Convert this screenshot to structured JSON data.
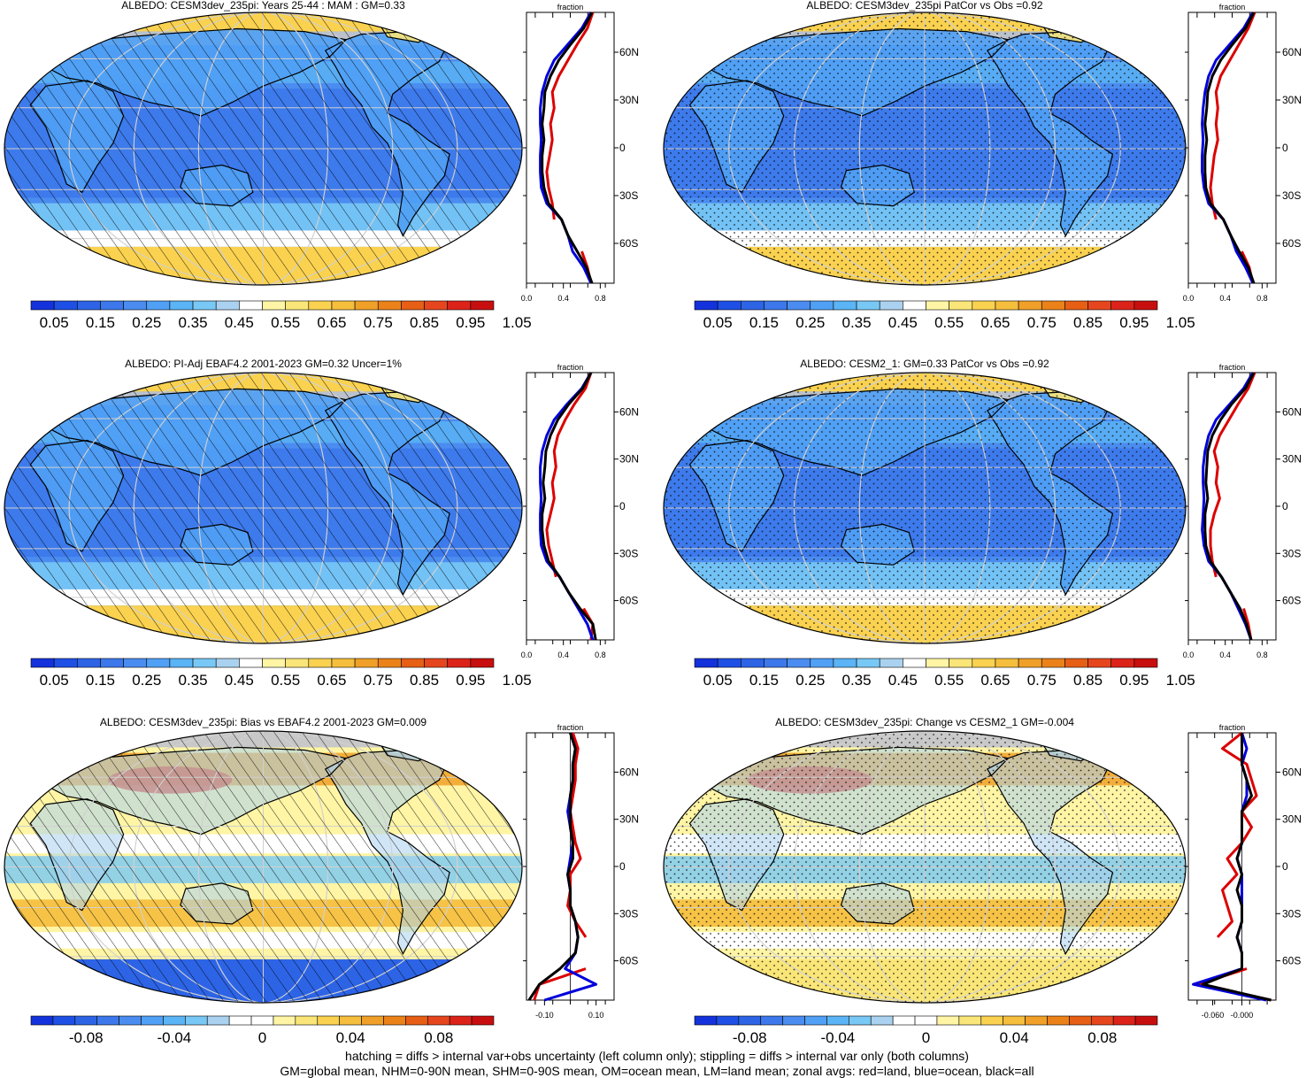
{
  "colors": {
    "abs_scale": [
      "#1432dc",
      "#1e50e6",
      "#2d64e6",
      "#3c78eb",
      "#4b8cf0",
      "#50a0f5",
      "#5ab4f5",
      "#78c8f5",
      "#aad2f0",
      "#ffffff",
      "#fff5a5",
      "#fae678",
      "#fad250",
      "#f5be3c",
      "#f0a028",
      "#eb8219",
      "#e65f14",
      "#e6461e",
      "#dc2319",
      "#c80f0f"
    ],
    "diff_scale": [
      "#1432dc",
      "#1e50e6",
      "#2d64e6",
      "#3c78eb",
      "#4b8cf0",
      "#50a0f5",
      "#5ab4f5",
      "#78c8f5",
      "#aad2f0",
      "#ffffff",
      "#ffffff",
      "#fff5a5",
      "#fae678",
      "#fad250",
      "#f5be3c",
      "#f0a028",
      "#eb8219",
      "#e65f14",
      "#e6461e",
      "#dc2319",
      "#c80f0f"
    ],
    "land": "#dc0000",
    "ocean": "#0000dc",
    "all": "#000000"
  },
  "lat_labels": [
    "60N",
    "30N",
    "0",
    "30S",
    "60S"
  ],
  "abs_colorbar_labels": [
    "0.05",
    "0.15",
    "0.25",
    "0.35",
    "0.45",
    "0.55",
    "0.65",
    "0.75",
    "0.85",
    "0.95",
    "1.05"
  ],
  "diff_colorbar_labels": [
    "-0.08",
    "-0.04",
    "0",
    "0.04",
    "0.08"
  ],
  "zonal_axis_title": "fraction",
  "footer_line1": "hatching = diffs > internal var+obs uncertainty (left column only); stippling = diffs > internal var only (both columns)",
  "footer_line2": "GM=global mean, NHM=0-90N mean, SHM=0-90S mean, OM=ocean mean, LM=land mean; zonal avgs: red=land, blue=ocean, black=all",
  "chart_data": [
    {
      "type": "heatmap",
      "title": "ALBEDO: CESM3dev_235pi: Years 25-44 : MAM : GM=0.33",
      "overlay": "hatching",
      "colorbar": "abs",
      "zonal": {
        "xticks": [
          "0.0",
          "0.4",
          "0.8"
        ],
        "xlim": [
          0,
          0.95
        ],
        "lat": [
          85,
          75,
          65,
          55,
          45,
          35,
          25,
          15,
          5,
          -5,
          -15,
          -25,
          -35,
          -45,
          -55,
          -65,
          -75,
          -85
        ],
        "land": [
          0.72,
          0.66,
          0.55,
          0.45,
          0.35,
          0.28,
          0.3,
          0.26,
          0.28,
          0.25,
          0.22,
          0.24,
          0.28,
          0.3,
          null,
          0.6,
          0.66,
          0.7
        ],
        "ocean": [
          0.7,
          0.6,
          0.45,
          0.3,
          0.22,
          0.17,
          0.15,
          0.15,
          0.16,
          0.15,
          0.15,
          0.16,
          0.22,
          0.38,
          0.45,
          0.5,
          0.62,
          0.7
        ],
        "all": [
          0.71,
          0.62,
          0.48,
          0.35,
          0.26,
          0.2,
          0.19,
          0.17,
          0.19,
          0.17,
          0.17,
          0.19,
          0.24,
          0.38,
          0.45,
          0.55,
          0.65,
          0.71
        ]
      }
    },
    {
      "type": "heatmap",
      "title": "ALBEDO: CESM3dev_235pi PatCor vs Obs =0.92",
      "overlay": "stippling",
      "colorbar": "abs",
      "zonal": {
        "xticks": [
          "0.0",
          "0.4",
          "0.8"
        ],
        "xlim": [
          0,
          0.95
        ],
        "lat": [
          85,
          75,
          65,
          55,
          45,
          35,
          25,
          15,
          5,
          -5,
          -15,
          -25,
          -35,
          -45,
          -55,
          -65,
          -75,
          -85
        ],
        "land": [
          0.72,
          0.65,
          0.55,
          0.45,
          0.35,
          0.3,
          0.32,
          0.3,
          0.32,
          0.28,
          0.26,
          0.24,
          0.26,
          0.3,
          null,
          0.58,
          0.66,
          0.7
        ],
        "ocean": [
          0.7,
          0.6,
          0.45,
          0.3,
          0.22,
          0.18,
          0.16,
          0.15,
          0.16,
          0.15,
          0.15,
          0.17,
          0.22,
          0.38,
          0.46,
          0.52,
          0.62,
          0.7
        ],
        "all": [
          0.71,
          0.62,
          0.48,
          0.35,
          0.26,
          0.21,
          0.2,
          0.18,
          0.2,
          0.18,
          0.18,
          0.19,
          0.24,
          0.38,
          0.46,
          0.55,
          0.65,
          0.71
        ]
      }
    },
    {
      "type": "heatmap",
      "title": "ALBEDO: PI-Adj EBAF4.2 2001-2023 GM=0.32 Uncer=1%",
      "overlay": "hatching",
      "colorbar": "abs",
      "zonal": {
        "xticks": [
          "0.0",
          "0.4",
          "0.8"
        ],
        "xlim": [
          0,
          0.95
        ],
        "lat": [
          85,
          75,
          65,
          55,
          45,
          35,
          25,
          15,
          5,
          -5,
          -15,
          -25,
          -35,
          -45,
          -55,
          -65,
          -75,
          -85
        ],
        "land": [
          0.7,
          0.64,
          0.52,
          0.42,
          0.34,
          0.3,
          0.32,
          0.28,
          0.3,
          0.26,
          0.22,
          0.24,
          0.28,
          0.32,
          null,
          0.62,
          0.72,
          0.7
        ],
        "ocean": [
          0.7,
          0.6,
          0.44,
          0.3,
          0.22,
          0.17,
          0.15,
          0.15,
          0.16,
          0.15,
          0.15,
          0.16,
          0.22,
          0.36,
          0.46,
          0.56,
          0.66,
          0.72
        ],
        "all": [
          0.7,
          0.61,
          0.46,
          0.34,
          0.26,
          0.21,
          0.2,
          0.18,
          0.2,
          0.17,
          0.17,
          0.19,
          0.24,
          0.36,
          0.46,
          0.58,
          0.72,
          0.75
        ]
      }
    },
    {
      "type": "heatmap",
      "title": "ALBEDO: CESM2_1: GM=0.33 PatCor vs Obs =0.92",
      "overlay": "stippling",
      "colorbar": "abs",
      "zonal": {
        "xticks": [
          "0.0",
          "0.4",
          "0.8"
        ],
        "xlim": [
          0,
          0.95
        ],
        "lat": [
          85,
          75,
          65,
          55,
          45,
          35,
          25,
          15,
          5,
          -5,
          -15,
          -25,
          -35,
          -45,
          -55,
          -65,
          -75,
          -85
        ],
        "land": [
          0.72,
          0.65,
          0.54,
          0.44,
          0.34,
          0.28,
          0.32,
          0.3,
          0.34,
          0.28,
          0.24,
          0.24,
          0.26,
          0.3,
          null,
          0.6,
          0.65,
          0.68
        ],
        "ocean": [
          0.7,
          0.6,
          0.45,
          0.3,
          0.22,
          0.18,
          0.16,
          0.16,
          0.17,
          0.16,
          0.15,
          0.17,
          0.22,
          0.36,
          0.46,
          0.54,
          0.62,
          0.68
        ],
        "all": [
          0.71,
          0.62,
          0.47,
          0.35,
          0.26,
          0.21,
          0.2,
          0.19,
          0.21,
          0.18,
          0.18,
          0.19,
          0.24,
          0.36,
          0.46,
          0.56,
          0.63,
          0.68
        ]
      }
    },
    {
      "type": "heatmap",
      "title": "ALBEDO: CESM3dev_235pi: Bias vs EBAF4.2 2001-2023 GM=0.009",
      "overlay": "hatching",
      "colorbar": "diff",
      "zonal": {
        "xticks": [
          "-0.10",
          "0.10"
        ],
        "xlim": [
          -0.17,
          0.17
        ],
        "lat": [
          85,
          75,
          65,
          55,
          45,
          35,
          25,
          15,
          5,
          -5,
          -15,
          -25,
          -35,
          -45,
          -55,
          -65,
          -75,
          -85
        ],
        "land": [
          0.01,
          0.03,
          0.02,
          0.02,
          0.01,
          0.0,
          0.01,
          0.02,
          0.04,
          0.0,
          0.0,
          -0.01,
          0.02,
          0.06,
          null,
          0.06,
          -0.12,
          -0.14
        ],
        "ocean": [
          0.0,
          0.02,
          0.01,
          0.01,
          0.0,
          -0.01,
          0.0,
          0.01,
          0.0,
          -0.01,
          0.0,
          0.0,
          0.02,
          0.03,
          0.02,
          -0.02,
          0.1,
          -0.1
        ],
        "all": [
          0.0,
          0.02,
          0.01,
          0.01,
          0.0,
          0.0,
          0.0,
          0.01,
          0.01,
          -0.01,
          0.0,
          0.0,
          0.02,
          0.03,
          0.02,
          -0.04,
          -0.12,
          -0.16
        ]
      }
    },
    {
      "type": "heatmap",
      "title": "ALBEDO: CESM3dev_235pi: Change vs CESM2_1 GM=-0.004",
      "overlay": "stippling",
      "colorbar": "diff",
      "zonal": {
        "xticks": [
          "-0.060",
          "-0.000"
        ],
        "xlim": [
          -0.11,
          0.07
        ],
        "lat": [
          85,
          75,
          65,
          55,
          45,
          35,
          25,
          15,
          5,
          -5,
          -15,
          -25,
          -35,
          -45,
          -55,
          -65,
          -75,
          -85
        ],
        "land": [
          0.0,
          -0.04,
          0.01,
          0.02,
          0.03,
          0.0,
          0.02,
          0.0,
          -0.03,
          -0.01,
          -0.04,
          -0.03,
          -0.02,
          -0.05,
          null,
          0.01,
          -0.09,
          0.06
        ],
        "ocean": [
          0.0,
          0.01,
          0.0,
          0.01,
          0.01,
          0.0,
          0.0,
          0.0,
          -0.01,
          0.0,
          0.0,
          0.0,
          0.0,
          -0.01,
          0.0,
          0.0,
          -0.1,
          0.05
        ],
        "all": [
          0.0,
          0.0,
          0.0,
          0.01,
          0.02,
          0.0,
          0.0,
          0.0,
          -0.01,
          0.0,
          -0.01,
          0.0,
          0.0,
          -0.01,
          0.0,
          0.0,
          -0.08,
          0.06
        ]
      }
    }
  ]
}
